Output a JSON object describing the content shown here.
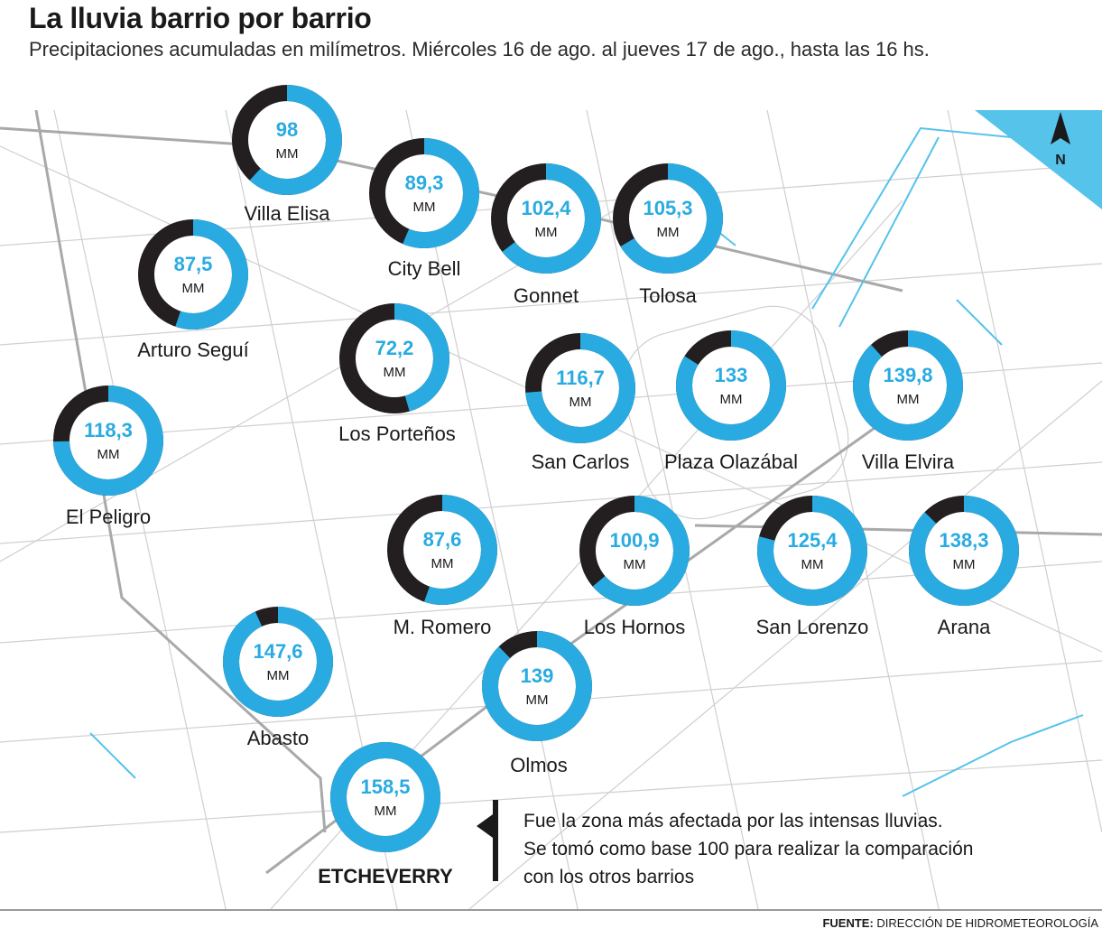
{
  "title": "La lluvia barrio por barrio",
  "subtitle": "Precipitaciones acumuladas en milímetros. Miércoles 16 de ago. al jueves 17 de ago., hasta las 16 hs.",
  "north_label": "N",
  "note": {
    "lines": [
      "Fue la zona más afectada por las intensas lluvias.",
      "Se tomó como base 100 para realizar la comparación",
      "con los otros barrios"
    ]
  },
  "source": {
    "label": "FUENTE:",
    "text": "DIRECCIÓN DE HIDROMETEOROLOGÍA"
  },
  "colors": {
    "value": "#29abe2",
    "remainder": "#231f20",
    "water": "#55c3ea",
    "roads": "#c9c9c9",
    "text": "#1a1a1a"
  },
  "chart_data": {
    "type": "donut",
    "unit": "MM",
    "base_label": "ETCHEVERRY",
    "base_value": 158.5,
    "categories": [
      "Villa Elisa",
      "City Bell",
      "Gonnet",
      "Tolosa",
      "Arturo Seguí",
      "Los Porteños",
      "San Carlos",
      "Plaza Olazábal",
      "Villa Elvira",
      "El Peligro",
      "M. Romero",
      "Los Hornos",
      "San Lorenzo",
      "Arana",
      "Abasto",
      "Olmos",
      "ETCHEVERRY"
    ],
    "values": [
      98,
      89.3,
      102.4,
      105.3,
      87.5,
      72.2,
      116.7,
      133,
      139.8,
      118.3,
      87.6,
      100.9,
      125.4,
      138.3,
      147.6,
      139,
      158.5
    ],
    "value_labels": [
      "98",
      "89,3",
      "102,4",
      "105,3",
      "87,5",
      "72,2",
      "116,7",
      "133",
      "139,8",
      "118,3",
      "87,6",
      "100,9",
      "125,4",
      "138,3",
      "147,6",
      "139",
      "158,5"
    ]
  }
}
